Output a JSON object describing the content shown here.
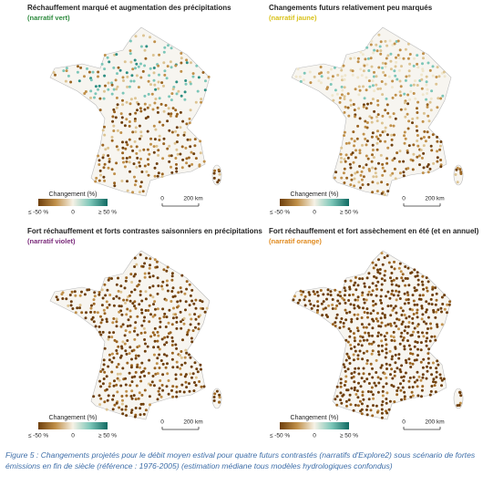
{
  "panels": [
    {
      "title": "Réchauffement marqué et augmentation des précipitations",
      "subtitle": "(narratif vert)",
      "subtitle_color": "#2e8b3e",
      "legend_title": "Changement (%)",
      "legend_labels": [
        "≤ -50 %",
        "0",
        "≥ 50 %"
      ],
      "scale_labels": [
        "0",
        "200 km"
      ]
    },
    {
      "title": "Changements futurs relativement peu marqués",
      "subtitle": "(narratif jaune)",
      "subtitle_color": "#d9c21a",
      "legend_title": "Changement (%)",
      "legend_labels": [
        "≤ -50 %",
        "0",
        "≥ 50 %"
      ],
      "scale_labels": [
        "0",
        "200 km"
      ]
    },
    {
      "title": "Fort réchauffement et forts contrastes saisonniers en précipitations",
      "subtitle": "(narratif violet)",
      "subtitle_color": "#7a2a7a",
      "legend_title": "Changement (%)",
      "legend_labels": [
        "≤ -50 %",
        "0",
        "≥ 50 %"
      ],
      "scale_labels": [
        "0",
        "200 km"
      ]
    },
    {
      "title": "Fort réchauffement et fort assèchement en été (et en annuel)",
      "subtitle": "(narratif orange)",
      "subtitle_color": "#e08a1e",
      "legend_title": "Changement (%)",
      "legend_labels": [
        "≤ -50 %",
        "0",
        "≥ 50 %"
      ],
      "scale_labels": [
        "0",
        "200 km"
      ]
    }
  ],
  "caption": "Figure 5 : Changements projetés pour le débit moyen estival pour quatre futurs contrastés (narratifs d'Explore2) sous scénario de fortes émissions en fin de siècle (référence : 1976-2005) (estimation médiane tous modèles hydrologiques confondus)"
}
